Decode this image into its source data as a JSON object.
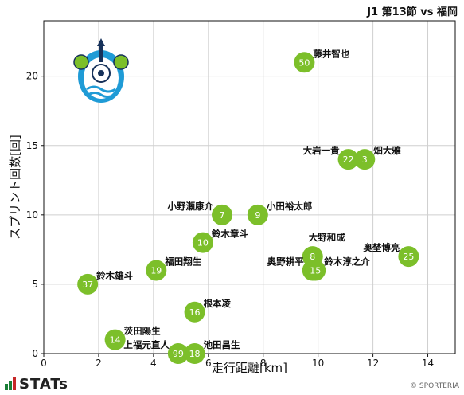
{
  "header": {
    "title": "J1 第13節 vs 福岡"
  },
  "footer": {
    "logo_text": "STATs",
    "credit": "© SPORTERIA"
  },
  "colors": {
    "marker": "#7cbf2a",
    "grid": "#cfcfcf",
    "axis": "#111111"
  },
  "team_logo": {
    "icon": "shonan-bellmare-crest-icon",
    "colors": [
      "#1f9bd6",
      "#7cbf2a",
      "#ffffff",
      "#16315a"
    ]
  },
  "chart_data": {
    "type": "scatter",
    "title": "J1 第13節 vs 福岡",
    "xlabel": "走行距離[km]",
    "ylabel": "スプリント回数[回]",
    "xlim": [
      0,
      15
    ],
    "ylim": [
      0,
      24
    ],
    "xticks": [
      0,
      2,
      4,
      6,
      8,
      10,
      12,
      14
    ],
    "yticks": [
      0,
      5,
      10,
      15,
      20
    ],
    "grid": true,
    "points": [
      {
        "number": "50",
        "name": "藤井智也",
        "x": 9.5,
        "y": 21,
        "label_pos": "right"
      },
      {
        "number": "22",
        "name": "大岩一貴",
        "x": 11.1,
        "y": 14,
        "label_pos": "left"
      },
      {
        "number": "3",
        "name": "畑大雅",
        "x": 11.7,
        "y": 14,
        "label_pos": "right"
      },
      {
        "number": "7",
        "name": "小野瀬康介",
        "x": 6.5,
        "y": 10,
        "label_pos": "left"
      },
      {
        "number": "9",
        "name": "小田裕太郎",
        "x": 7.8,
        "y": 10,
        "label_pos": "right"
      },
      {
        "number": "10",
        "name": "鈴木章斗",
        "x": 5.8,
        "y": 8,
        "label_pos": "right"
      },
      {
        "number": "8",
        "name": "大野和成",
        "x": 9.8,
        "y": 7,
        "label_pos": "above"
      },
      {
        "number": "25",
        "name": "奥埜博亮",
        "x": 13.3,
        "y": 7,
        "label_pos": "left"
      },
      {
        "number": "5",
        "name": "奥野耕平",
        "x": 9.8,
        "y": 6,
        "label_pos": "left"
      },
      {
        "number": "15",
        "name": "鈴木淳之介",
        "x": 9.9,
        "y": 6,
        "label_pos": "right"
      },
      {
        "number": "19",
        "name": "福田翔生",
        "x": 4.1,
        "y": 6,
        "label_pos": "right"
      },
      {
        "number": "37",
        "name": "鈴木雄斗",
        "x": 1.6,
        "y": 5,
        "label_pos": "right"
      },
      {
        "number": "16",
        "name": "根本凌",
        "x": 5.5,
        "y": 3,
        "label_pos": "right"
      },
      {
        "number": "14",
        "name": "茨田陽生",
        "x": 2.6,
        "y": 1,
        "label_pos": "right"
      },
      {
        "number": "99",
        "name": "上福元直人",
        "x": 4.9,
        "y": 0,
        "label_pos": "left"
      },
      {
        "number": "18",
        "name": "池田昌生",
        "x": 5.5,
        "y": 0,
        "label_pos": "right"
      }
    ]
  }
}
